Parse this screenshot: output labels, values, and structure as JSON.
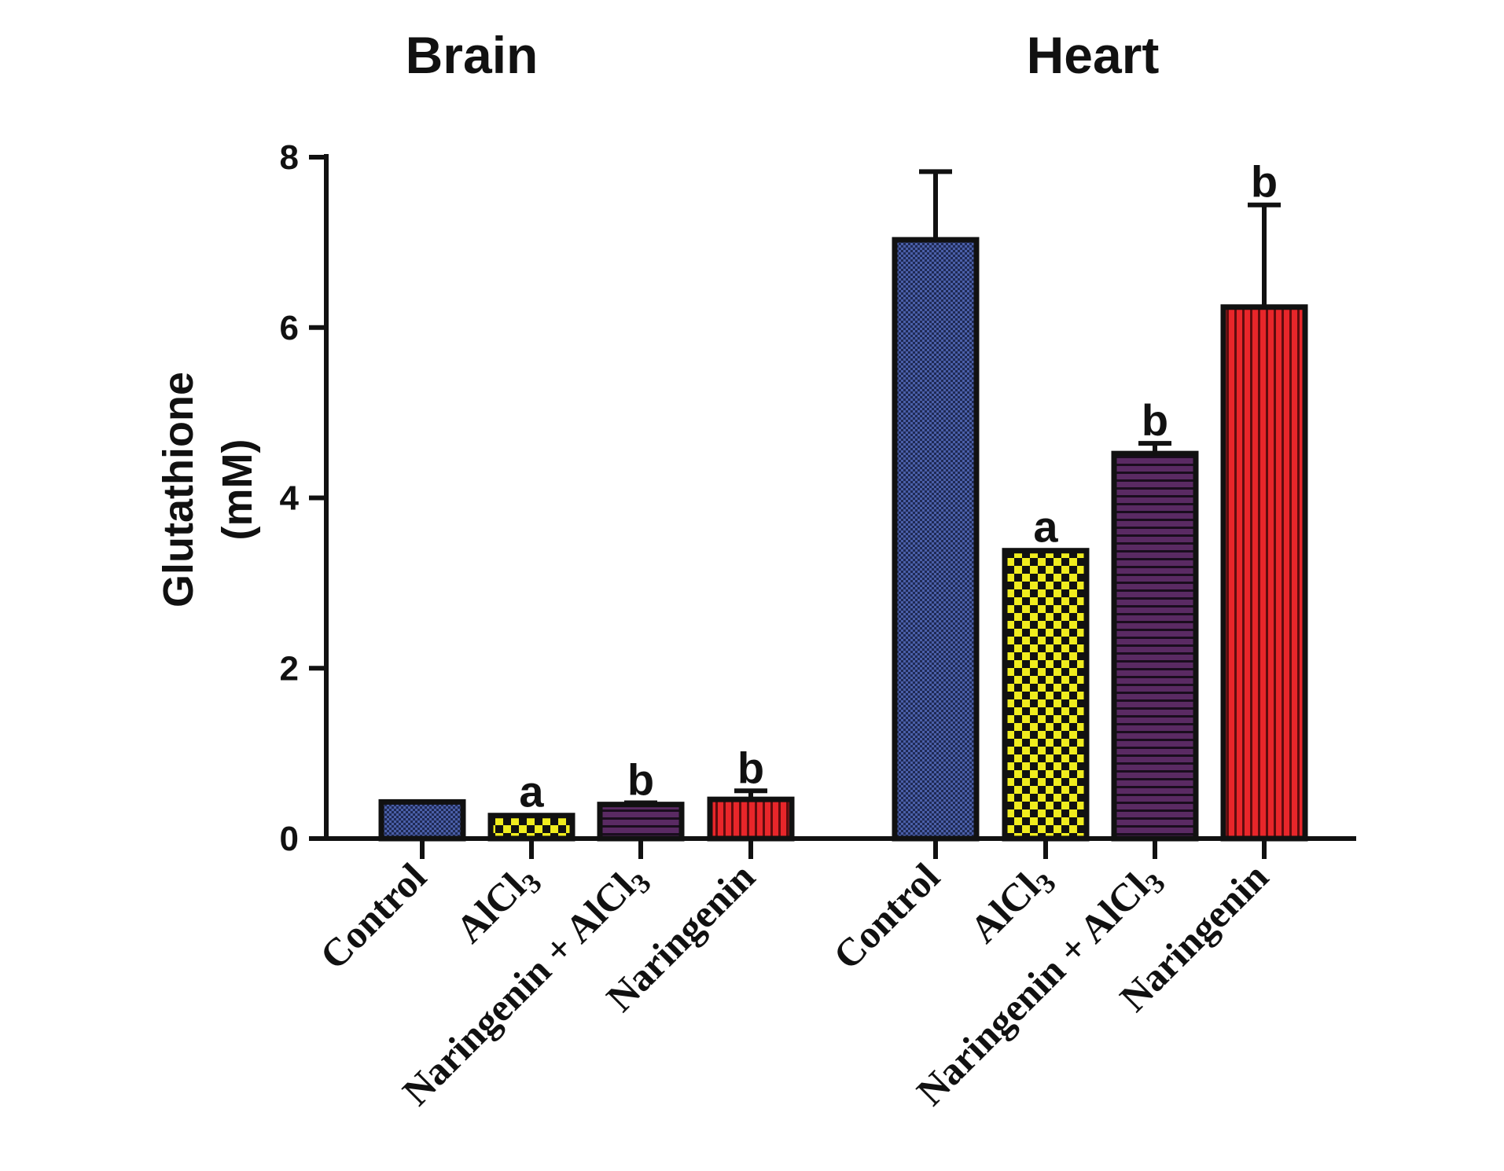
{
  "chart_data": {
    "type": "bar",
    "ylabel": "Glutathione",
    "yunit": "(mM)",
    "ylim": [
      0,
      8
    ],
    "yticks": [
      0,
      2,
      4,
      6,
      8
    ],
    "ytick_labels": [
      "0",
      "2",
      "4",
      "6",
      "8"
    ],
    "groups": [
      {
        "title": "Brain",
        "categories": [
          "Control",
          "AlCl3",
          "Naringenin + AlCl3",
          "Naringenin"
        ],
        "category_labels": [
          "Control",
          "AlCl",
          "Naringenin + AlCl",
          "Naringenin"
        ],
        "values": [
          0.43,
          0.27,
          0.4,
          0.46
        ],
        "errors": [
          0.01,
          0.01,
          0.02,
          0.1
        ],
        "annotations": [
          "",
          "a",
          "b",
          "b"
        ]
      },
      {
        "title": "Heart",
        "categories": [
          "Control",
          "AlCl3",
          "Naringenin + AlCl3",
          "Naringenin"
        ],
        "category_labels": [
          "Control",
          "AlCl",
          "Naringenin + AlCl",
          "Naringenin"
        ],
        "values": [
          7.03,
          3.38,
          4.52,
          6.24
        ],
        "errors": [
          0.8,
          0.01,
          0.12,
          1.2
        ],
        "annotations": [
          "",
          "a",
          "b",
          "b"
        ]
      }
    ],
    "subscript_marker": "3",
    "colors": [
      "#4a5fa8",
      "#f0ec1e",
      "#5a2a63",
      "#e8262a"
    ],
    "patterns": [
      "dots",
      "checker",
      "horizontal-stripes",
      "vertical-stripes"
    ]
  }
}
